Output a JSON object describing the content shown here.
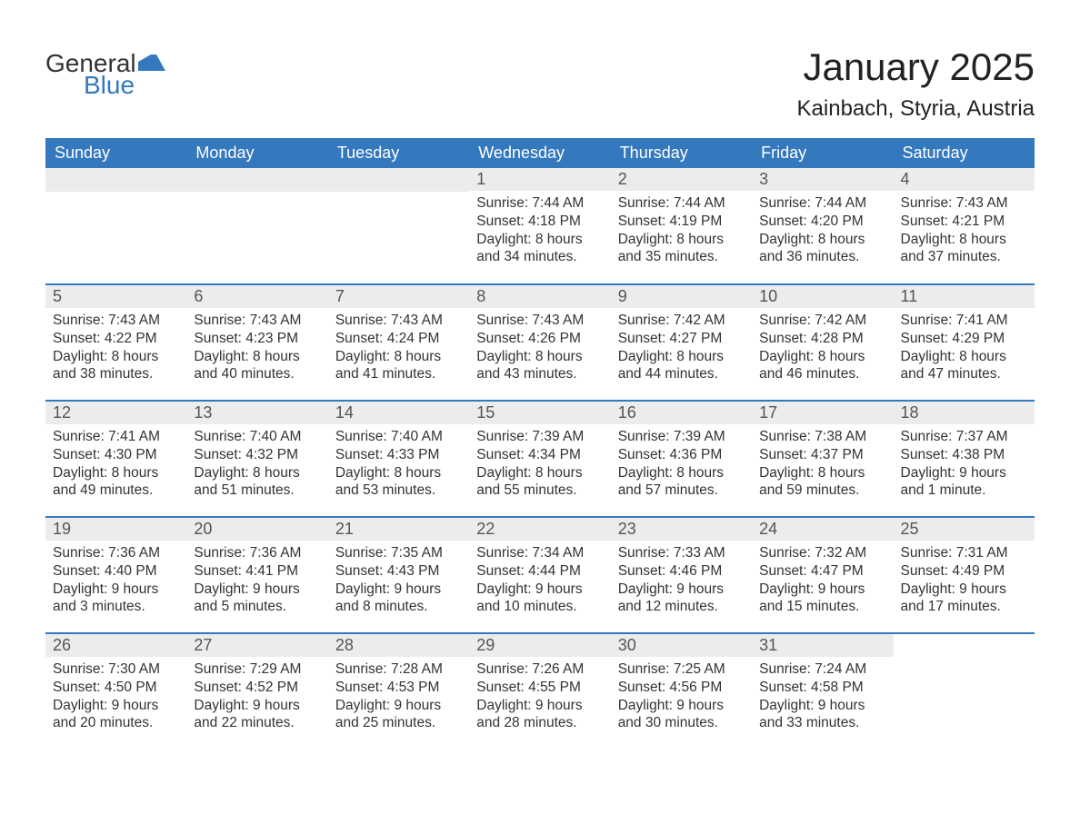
{
  "logo": {
    "text1": "General",
    "text2": "Blue",
    "icon_color": "#3478bd"
  },
  "title": "January 2025",
  "location": "Kainbach, Styria, Austria",
  "accent_color": "#3478bd",
  "header_bg": "#3478bd",
  "header_fg": "#ffffff",
  "daynum_bg": "#ececec",
  "text_color": "#333333",
  "days_of_week": [
    "Sunday",
    "Monday",
    "Tuesday",
    "Wednesday",
    "Thursday",
    "Friday",
    "Saturday"
  ],
  "weeks": [
    [
      null,
      null,
      null,
      {
        "n": "1",
        "sunrise": "Sunrise: 7:44 AM",
        "sunset": "Sunset: 4:18 PM",
        "daylight": "Daylight: 8 hours and 34 minutes."
      },
      {
        "n": "2",
        "sunrise": "Sunrise: 7:44 AM",
        "sunset": "Sunset: 4:19 PM",
        "daylight": "Daylight: 8 hours and 35 minutes."
      },
      {
        "n": "3",
        "sunrise": "Sunrise: 7:44 AM",
        "sunset": "Sunset: 4:20 PM",
        "daylight": "Daylight: 8 hours and 36 minutes."
      },
      {
        "n": "4",
        "sunrise": "Sunrise: 7:43 AM",
        "sunset": "Sunset: 4:21 PM",
        "daylight": "Daylight: 8 hours and 37 minutes."
      }
    ],
    [
      {
        "n": "5",
        "sunrise": "Sunrise: 7:43 AM",
        "sunset": "Sunset: 4:22 PM",
        "daylight": "Daylight: 8 hours and 38 minutes."
      },
      {
        "n": "6",
        "sunrise": "Sunrise: 7:43 AM",
        "sunset": "Sunset: 4:23 PM",
        "daylight": "Daylight: 8 hours and 40 minutes."
      },
      {
        "n": "7",
        "sunrise": "Sunrise: 7:43 AM",
        "sunset": "Sunset: 4:24 PM",
        "daylight": "Daylight: 8 hours and 41 minutes."
      },
      {
        "n": "8",
        "sunrise": "Sunrise: 7:43 AM",
        "sunset": "Sunset: 4:26 PM",
        "daylight": "Daylight: 8 hours and 43 minutes."
      },
      {
        "n": "9",
        "sunrise": "Sunrise: 7:42 AM",
        "sunset": "Sunset: 4:27 PM",
        "daylight": "Daylight: 8 hours and 44 minutes."
      },
      {
        "n": "10",
        "sunrise": "Sunrise: 7:42 AM",
        "sunset": "Sunset: 4:28 PM",
        "daylight": "Daylight: 8 hours and 46 minutes."
      },
      {
        "n": "11",
        "sunrise": "Sunrise: 7:41 AM",
        "sunset": "Sunset: 4:29 PM",
        "daylight": "Daylight: 8 hours and 47 minutes."
      }
    ],
    [
      {
        "n": "12",
        "sunrise": "Sunrise: 7:41 AM",
        "sunset": "Sunset: 4:30 PM",
        "daylight": "Daylight: 8 hours and 49 minutes."
      },
      {
        "n": "13",
        "sunrise": "Sunrise: 7:40 AM",
        "sunset": "Sunset: 4:32 PM",
        "daylight": "Daylight: 8 hours and 51 minutes."
      },
      {
        "n": "14",
        "sunrise": "Sunrise: 7:40 AM",
        "sunset": "Sunset: 4:33 PM",
        "daylight": "Daylight: 8 hours and 53 minutes."
      },
      {
        "n": "15",
        "sunrise": "Sunrise: 7:39 AM",
        "sunset": "Sunset: 4:34 PM",
        "daylight": "Daylight: 8 hours and 55 minutes."
      },
      {
        "n": "16",
        "sunrise": "Sunrise: 7:39 AM",
        "sunset": "Sunset: 4:36 PM",
        "daylight": "Daylight: 8 hours and 57 minutes."
      },
      {
        "n": "17",
        "sunrise": "Sunrise: 7:38 AM",
        "sunset": "Sunset: 4:37 PM",
        "daylight": "Daylight: 8 hours and 59 minutes."
      },
      {
        "n": "18",
        "sunrise": "Sunrise: 7:37 AM",
        "sunset": "Sunset: 4:38 PM",
        "daylight": "Daylight: 9 hours and 1 minute."
      }
    ],
    [
      {
        "n": "19",
        "sunrise": "Sunrise: 7:36 AM",
        "sunset": "Sunset: 4:40 PM",
        "daylight": "Daylight: 9 hours and 3 minutes."
      },
      {
        "n": "20",
        "sunrise": "Sunrise: 7:36 AM",
        "sunset": "Sunset: 4:41 PM",
        "daylight": "Daylight: 9 hours and 5 minutes."
      },
      {
        "n": "21",
        "sunrise": "Sunrise: 7:35 AM",
        "sunset": "Sunset: 4:43 PM",
        "daylight": "Daylight: 9 hours and 8 minutes."
      },
      {
        "n": "22",
        "sunrise": "Sunrise: 7:34 AM",
        "sunset": "Sunset: 4:44 PM",
        "daylight": "Daylight: 9 hours and 10 minutes."
      },
      {
        "n": "23",
        "sunrise": "Sunrise: 7:33 AM",
        "sunset": "Sunset: 4:46 PM",
        "daylight": "Daylight: 9 hours and 12 minutes."
      },
      {
        "n": "24",
        "sunrise": "Sunrise: 7:32 AM",
        "sunset": "Sunset: 4:47 PM",
        "daylight": "Daylight: 9 hours and 15 minutes."
      },
      {
        "n": "25",
        "sunrise": "Sunrise: 7:31 AM",
        "sunset": "Sunset: 4:49 PM",
        "daylight": "Daylight: 9 hours and 17 minutes."
      }
    ],
    [
      {
        "n": "26",
        "sunrise": "Sunrise: 7:30 AM",
        "sunset": "Sunset: 4:50 PM",
        "daylight": "Daylight: 9 hours and 20 minutes."
      },
      {
        "n": "27",
        "sunrise": "Sunrise: 7:29 AM",
        "sunset": "Sunset: 4:52 PM",
        "daylight": "Daylight: 9 hours and 22 minutes."
      },
      {
        "n": "28",
        "sunrise": "Sunrise: 7:28 AM",
        "sunset": "Sunset: 4:53 PM",
        "daylight": "Daylight: 9 hours and 25 minutes."
      },
      {
        "n": "29",
        "sunrise": "Sunrise: 7:26 AM",
        "sunset": "Sunset: 4:55 PM",
        "daylight": "Daylight: 9 hours and 28 minutes."
      },
      {
        "n": "30",
        "sunrise": "Sunrise: 7:25 AM",
        "sunset": "Sunset: 4:56 PM",
        "daylight": "Daylight: 9 hours and 30 minutes."
      },
      {
        "n": "31",
        "sunrise": "Sunrise: 7:24 AM",
        "sunset": "Sunset: 4:58 PM",
        "daylight": "Daylight: 9 hours and 33 minutes."
      },
      null
    ]
  ]
}
